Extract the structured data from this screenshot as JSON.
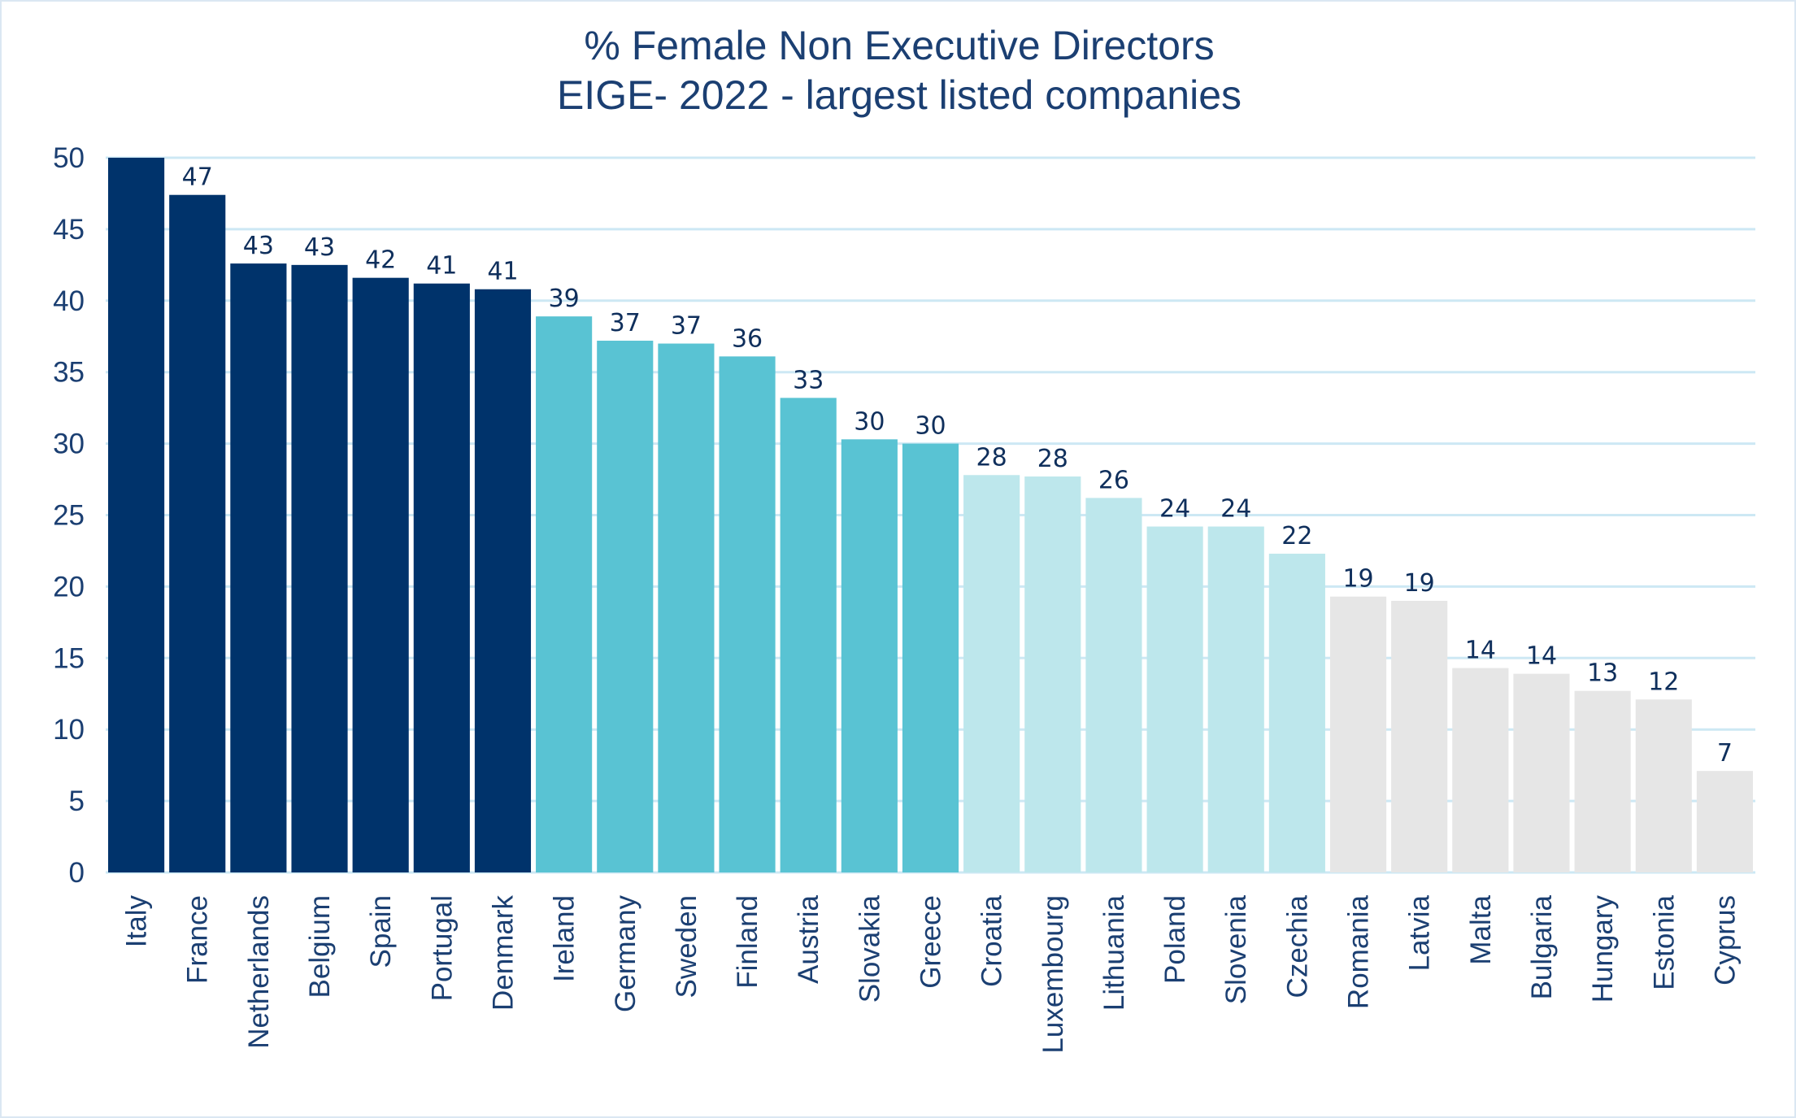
{
  "chart_data": {
    "type": "bar",
    "title": "% Female Non Executive Directors",
    "subtitle": "EIGE- 2022 - largest listed companies",
    "xlabel": "",
    "ylabel": "",
    "ylim": [
      0,
      50
    ],
    "yticks": [
      "0",
      "5",
      "10",
      "15",
      "20",
      "25",
      "30",
      "35",
      "40",
      "45",
      "50"
    ],
    "grid": true,
    "categories": [
      "Italy",
      "France",
      "Netherlands",
      "Belgium",
      "Spain",
      "Portugal",
      "Denmark",
      "Ireland",
      "Germany",
      "Sweden",
      "Finland",
      "Austria",
      "Slovakia",
      "Greece",
      "Croatia",
      "Luxembourg",
      "Lithuania",
      "Poland",
      "Slovenia",
      "Czechia",
      "Romania",
      "Latvia",
      "Malta",
      "Bulgaria",
      "Hungary",
      "Estonia",
      "Cyprus"
    ],
    "values": [
      50,
      47.4,
      42.6,
      42.5,
      41.6,
      41.2,
      40.8,
      38.9,
      37.2,
      37.0,
      36.1,
      33.2,
      30.3,
      30.0,
      27.8,
      27.7,
      26.2,
      24.2,
      24.2,
      22.3,
      19.3,
      19.0,
      14.3,
      13.9,
      12.7,
      12.1,
      7.1
    ],
    "data_labels": [
      "",
      "47",
      "43",
      "43",
      "42",
      "41",
      "41",
      "39",
      "37",
      "37",
      "36",
      "33",
      "30",
      "30",
      "28",
      "28",
      "26",
      "24",
      "24",
      "22",
      "19",
      "19",
      "14",
      "14",
      "13",
      "12",
      "7"
    ],
    "bar_colors": [
      "#00336b",
      "#00336b",
      "#00336b",
      "#00336b",
      "#00336b",
      "#00336b",
      "#00336b",
      "#59c3d3",
      "#59c3d3",
      "#59c3d3",
      "#59c3d3",
      "#59c3d3",
      "#59c3d3",
      "#59c3d3",
      "#bde7ec",
      "#bde7ec",
      "#bde7ec",
      "#bde7ec",
      "#bde7ec",
      "#bde7ec",
      "#e6e6e6",
      "#e6e6e6",
      "#e6e6e6",
      "#e6e6e6",
      "#e6e6e6",
      "#e6e6e6",
      "#e6e6e6"
    ],
    "gridline_color": "#cde8f4",
    "text_color": "#1b3f72"
  }
}
